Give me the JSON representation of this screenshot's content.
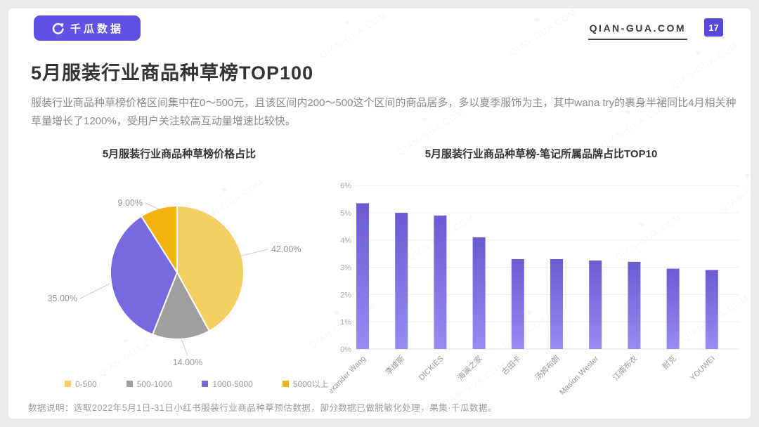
{
  "header": {
    "logo_text": "千瓜数据",
    "site": "QIAN-GUA.COM",
    "page_number": "17"
  },
  "title": "5月服装行业商品种草榜TOP100",
  "description": "服装行业商品种草榜价格区间集中在0～500元，且该区间内200～500这个区间的商品居多，多以夏季服饰为主，其中wana try的裹身半裙同比4月相关种草量增长了1200%，受用户关注较高互动量增速比较快。",
  "footer": "数据说明：选取2022年5月1日-31日小红书服装行业商品种草预估数据，部分数据已做脱敏化处理，果集·千瓜数据。",
  "watermark": "QIAN-GUA.COM",
  "chart_data": [
    {
      "type": "pie",
      "title": "5月服装行业商品种草榜价格占比",
      "labels": [
        "0-500",
        "500-1000",
        "1000-5000",
        "5000以上"
      ],
      "values": [
        42,
        14,
        35,
        9
      ],
      "display_labels": [
        "42.00%",
        "14.00%",
        "35.00%",
        "9.00%"
      ],
      "colors": [
        "#F5CE63",
        "#9E9E9E",
        "#7769E0",
        "#F5B312"
      ],
      "start_angle": "12-oclock-clockwise",
      "legend_position": "bottom"
    },
    {
      "type": "bar",
      "title": "5月服装行业商品种草榜-笔记所属品牌占比TOP10",
      "categories": [
        "Alexander Wang",
        "李维斯",
        "DICKIES",
        "海澜之家",
        "古田卡",
        "汤姆布朗",
        "Masion Wester",
        "江南布衣",
        "耐克",
        "YOUWEI"
      ],
      "values": [
        5.35,
        5.0,
        4.9,
        4.1,
        3.3,
        3.3,
        3.25,
        3.2,
        2.95,
        2.9
      ],
      "ylim": [
        0,
        6
      ],
      "yticks": [
        "0%",
        "1%",
        "2%",
        "3%",
        "4%",
        "5%",
        "6%"
      ],
      "grid": true,
      "bar_color_top": "#6B5AD2",
      "bar_color_bottom": "#968CF2",
      "xlabel": "",
      "ylabel": ""
    }
  ]
}
